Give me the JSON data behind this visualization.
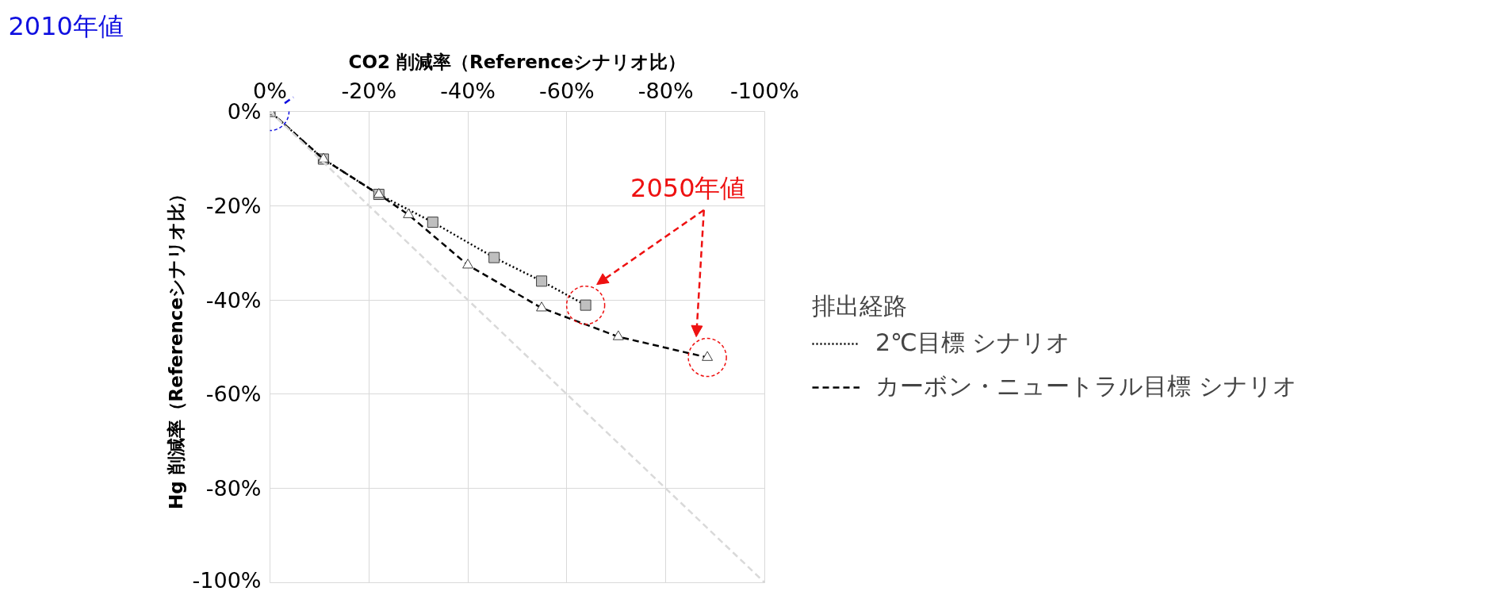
{
  "chart_data": {
    "type": "line",
    "xlabel": "CO2 削減率（Referenceシナリオ比）",
    "ylabel": "Hg 削減率（Referenceシナリオ比）",
    "legend_title": "排出経路",
    "xlim": [
      0,
      -100
    ],
    "ylim": [
      -100,
      0
    ],
    "xticks": [
      {
        "value": 0,
        "label": "0%"
      },
      {
        "value": -20,
        "label": "-20%"
      },
      {
        "value": -40,
        "label": "-40%"
      },
      {
        "value": -60,
        "label": "-60%"
      },
      {
        "value": -80,
        "label": "-80%"
      },
      {
        "value": -100,
        "label": "-100%"
      }
    ],
    "yticks": [
      {
        "value": 0,
        "label": "0%"
      },
      {
        "value": -20,
        "label": "-20%"
      },
      {
        "value": -40,
        "label": "-40%"
      },
      {
        "value": -60,
        "label": "-60%"
      },
      {
        "value": -80,
        "label": "-80%"
      },
      {
        "value": -100,
        "label": "-100%"
      }
    ],
    "grid": true,
    "legend": "right",
    "series": [
      {
        "name": "2℃目標 シナリオ",
        "color": "#000000",
        "line_style": "dotted",
        "marker": "square",
        "x": [
          0,
          -10.8,
          -22.0,
          -32.9,
          -45.3,
          -54.9,
          -63.8
        ],
        "values": [
          0,
          -10.1,
          -17.6,
          -23.5,
          -31.0,
          -36.0,
          -41.1
        ]
      },
      {
        "name": "カーボン・ニュートラル目標 シナリオ",
        "color": "#000000",
        "line_style": "dashed",
        "marker": "triangle",
        "x": [
          0,
          -10.8,
          -22.0,
          -28.0,
          -40.0,
          -54.9,
          -70.4,
          -88.4
        ],
        "values": [
          0,
          -10.1,
          -17.6,
          -21.9,
          -32.6,
          -41.7,
          -47.8,
          -52.2
        ]
      },
      {
        "x": [
          0,
          -100
        ],
        "values": [
          0,
          -100
        ],
        "color": "#d9d9d9",
        "line_style": "dashed"
      }
    ],
    "annotations": [
      "2010年値",
      "2050年値"
    ]
  }
}
